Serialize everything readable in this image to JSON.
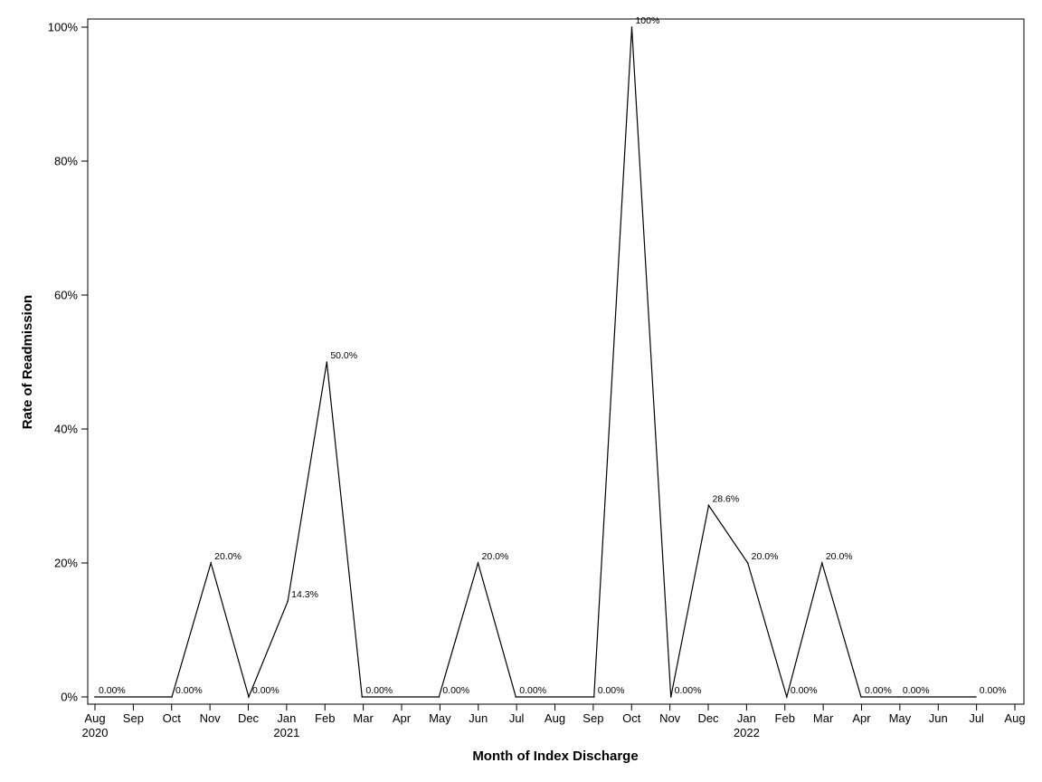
{
  "chart_data": {
    "type": "line",
    "title": "",
    "xlabel": "Month of Index Discharge",
    "ylabel": "Rate of Readmission",
    "ylim": [
      0,
      100
    ],
    "y_ticks": [
      {
        "value": 0,
        "label": "0%"
      },
      {
        "value": 20,
        "label": "20%"
      },
      {
        "value": 40,
        "label": "40%"
      },
      {
        "value": 60,
        "label": "60%"
      },
      {
        "value": 80,
        "label": "80%"
      },
      {
        "value": 100,
        "label": "100%"
      }
    ],
    "x_ticks": [
      {
        "label": "Aug",
        "year": "2020"
      },
      {
        "label": "Sep",
        "year": ""
      },
      {
        "label": "Oct",
        "year": ""
      },
      {
        "label": "Nov",
        "year": ""
      },
      {
        "label": "Dec",
        "year": ""
      },
      {
        "label": "Jan",
        "year": "2021"
      },
      {
        "label": "Feb",
        "year": ""
      },
      {
        "label": "Mar",
        "year": ""
      },
      {
        "label": "Apr",
        "year": ""
      },
      {
        "label": "May",
        "year": ""
      },
      {
        "label": "Jun",
        "year": ""
      },
      {
        "label": "Jul",
        "year": ""
      },
      {
        "label": "Aug",
        "year": ""
      },
      {
        "label": "Sep",
        "year": ""
      },
      {
        "label": "Oct",
        "year": ""
      },
      {
        "label": "Nov",
        "year": ""
      },
      {
        "label": "Dec",
        "year": ""
      },
      {
        "label": "Jan",
        "year": "2022"
      },
      {
        "label": "Feb",
        "year": ""
      },
      {
        "label": "Mar",
        "year": ""
      },
      {
        "label": "Apr",
        "year": ""
      },
      {
        "label": "May",
        "year": ""
      },
      {
        "label": "Jun",
        "year": ""
      },
      {
        "label": "Jul",
        "year": ""
      },
      {
        "label": "Aug",
        "year": ""
      }
    ],
    "x_range": [
      "2020-08-01",
      "2022-08-01"
    ],
    "series": [
      {
        "points": [
          {
            "x": "2020-08-01",
            "y": 0,
            "label": "0.00%"
          },
          {
            "x": "2020-10-01",
            "y": 0,
            "label": "0.00%"
          },
          {
            "x": "2020-11-01",
            "y": 20,
            "label": "20.0%"
          },
          {
            "x": "2020-12-01",
            "y": 0,
            "label": "0.00%"
          },
          {
            "x": "2021-01-01",
            "y": 14.3,
            "label": "14.3%"
          },
          {
            "x": "2021-02-01",
            "y": 50,
            "label": "50.0%"
          },
          {
            "x": "2021-03-01",
            "y": 0,
            "label": "0.00%"
          },
          {
            "x": "2021-05-01",
            "y": 0,
            "label": "0.00%"
          },
          {
            "x": "2021-06-01",
            "y": 20,
            "label": "20.0%"
          },
          {
            "x": "2021-07-01",
            "y": 0,
            "label": "0.00%"
          },
          {
            "x": "2021-09-01",
            "y": 0,
            "label": "0.00%"
          },
          {
            "x": "2021-10-01",
            "y": 100,
            "label": "100%"
          },
          {
            "x": "2021-11-01",
            "y": 0,
            "label": "0.00%"
          },
          {
            "x": "2021-12-01",
            "y": 28.6,
            "label": "28.6%"
          },
          {
            "x": "2022-01-01",
            "y": 20,
            "label": "20.0%"
          },
          {
            "x": "2022-02-01",
            "y": 0,
            "label": "0.00%"
          },
          {
            "x": "2022-03-01",
            "y": 20,
            "label": "20.0%"
          },
          {
            "x": "2022-04-01",
            "y": 0,
            "label": "0.00%"
          },
          {
            "x": "2022-05-01",
            "y": 0,
            "label": "0.00%"
          },
          {
            "x": "2022-07-01",
            "y": 0,
            "label": "0.00%"
          }
        ]
      }
    ],
    "line_color": "#000000",
    "grid": false,
    "legend": "none"
  }
}
